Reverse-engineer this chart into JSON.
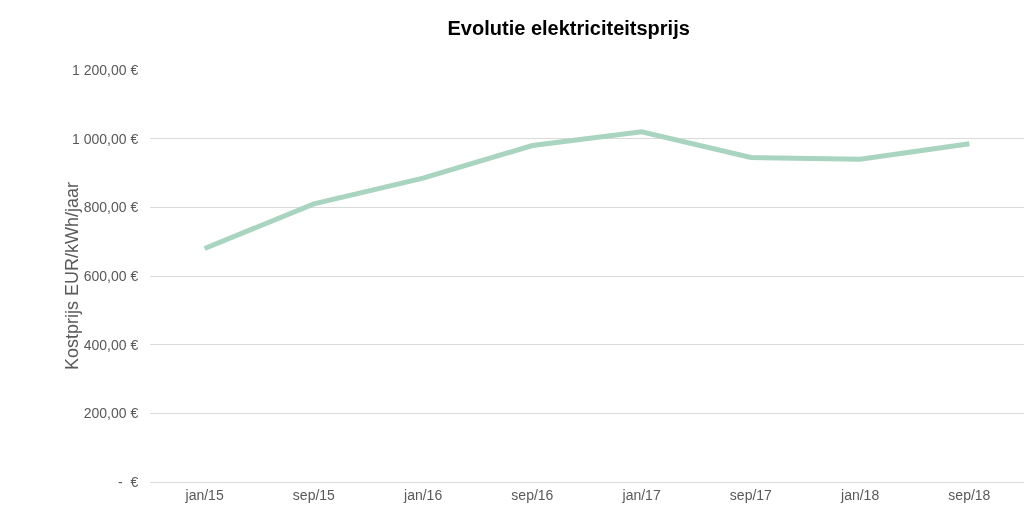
{
  "chart_data": {
    "type": "line",
    "title": "Evolutie elektriciteitsprijs",
    "ylabel": "Kostprijs EUR/kWh/jaar",
    "categories": [
      "jan/15",
      "sep/15",
      "jan/16",
      "sep/16",
      "jan/17",
      "sep/17",
      "jan/18",
      "sep/18"
    ],
    "series": [
      {
        "color": "#a9d4bf",
        "values": [
          680,
          810,
          885,
          980,
          1020,
          945,
          940,
          985
        ]
      }
    ],
    "ylim": [
      0,
      1200
    ],
    "yticks": [
      {
        "value": 0,
        "label": "-  €"
      },
      {
        "value": 200,
        "label": "200,00 €"
      },
      {
        "value": 400,
        "label": "400,00 €"
      },
      {
        "value": 600,
        "label": "600,00 €"
      },
      {
        "value": 800,
        "label": "800,00 €"
      },
      {
        "value": 1000,
        "label": "1 000,00 €"
      },
      {
        "value": 1200,
        "label": "1 200,00 €"
      }
    ],
    "grid": "y",
    "legend": false,
    "marker": "none",
    "line_style": "solid"
  }
}
